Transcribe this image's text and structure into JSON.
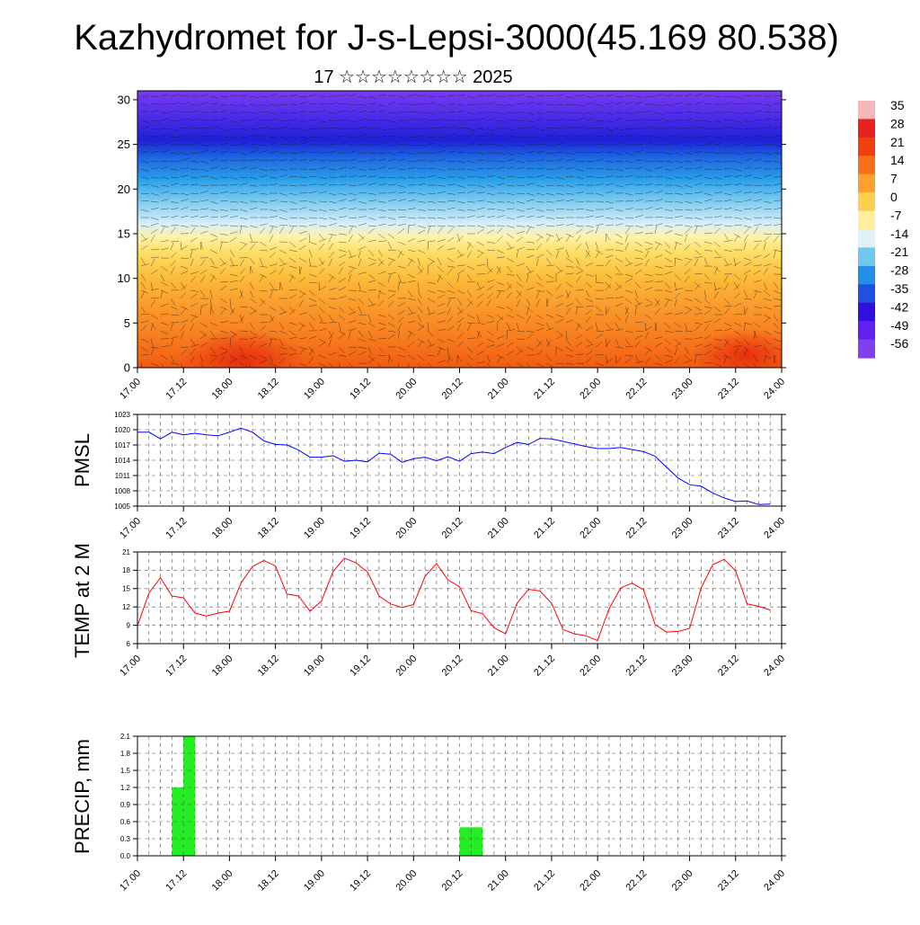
{
  "title": "Kazhydromet for J-s-Lepsi-3000(45.169 80.538)",
  "subtitle": "17 ☆☆☆☆☆☆☆☆ 2025",
  "time_ticks": [
    "17.00",
    "17.12",
    "18.00",
    "18.12",
    "19.00",
    "19.12",
    "20.00",
    "20.12",
    "21.00",
    "21.12",
    "22.00",
    "22.12",
    "23.00",
    "23.12",
    "24.00"
  ],
  "colors": {
    "pmsl_line": "#0000ff",
    "temp_line": "#ff0000",
    "precip_bar": "#22ee22",
    "grid": "#555555"
  },
  "colorbar": {
    "labels": [
      "35",
      "28",
      "21",
      "14",
      "7",
      "0",
      "-7",
      "-14",
      "-21",
      "-28",
      "-35",
      "-42",
      "-49",
      "-56"
    ],
    "stops": [
      "#f4b8b8",
      "#e82020",
      "#f04010",
      "#f87018",
      "#fca030",
      "#fdd050",
      "#fff0a0",
      "#e0f0f8",
      "#70c8f0",
      "#2090e8",
      "#2050e0",
      "#3010e0",
      "#6020f0",
      "#8040f0"
    ]
  },
  "chart_data": [
    {
      "type": "heatmap",
      "name": "cross-section",
      "ylim": [
        0,
        31
      ],
      "yticks": [
        0,
        5,
        10,
        15,
        20,
        25,
        30
      ],
      "xlim": [
        0,
        168
      ]
    },
    {
      "type": "line",
      "ylabel": "PMSL",
      "ylim": [
        1005,
        1023
      ],
      "yticks": [
        1005,
        1008,
        1011,
        1014,
        1017,
        1020,
        1023
      ],
      "x": [
        0,
        3,
        6,
        9,
        12,
        15,
        18,
        21,
        24,
        27,
        30,
        33,
        36,
        39,
        42,
        45,
        48,
        51,
        54,
        57,
        60,
        63,
        66,
        69,
        72,
        75,
        78,
        81,
        84,
        87,
        90,
        93,
        96,
        99,
        102,
        105,
        108,
        111,
        114,
        117,
        120,
        123,
        126,
        129,
        132,
        135,
        138,
        141,
        144,
        147,
        150,
        153,
        156,
        159,
        162,
        165
      ],
      "values": [
        1019.5,
        1019.5,
        1018.2,
        1019.5,
        1019.0,
        1019.3,
        1019.0,
        1018.8,
        1019.5,
        1020.3,
        1019.5,
        1017.8,
        1017.1,
        1017.0,
        1016.0,
        1014.6,
        1014.6,
        1014.9,
        1013.8,
        1014.0,
        1013.7,
        1015.4,
        1015.2,
        1013.6,
        1014.3,
        1014.6,
        1013.9,
        1014.7,
        1013.8,
        1015.3,
        1015.6,
        1015.3,
        1016.5,
        1017.5,
        1017.1,
        1018.3,
        1018.2,
        1017.7,
        1017.2,
        1016.7,
        1016.3,
        1016.3,
        1016.5,
        1016.1,
        1015.7,
        1014.8,
        1012.6,
        1010.5,
        1009.2,
        1008.9,
        1007.6,
        1006.6,
        1005.9,
        1006.0,
        1005.3,
        1005.4
      ]
    },
    {
      "type": "line",
      "ylabel": "TEMP at 2 M",
      "ylim": [
        6,
        21
      ],
      "yticks": [
        6,
        9,
        12,
        15,
        18,
        21
      ],
      "x": [
        0,
        3,
        6,
        9,
        12,
        15,
        18,
        21,
        24,
        27,
        30,
        33,
        36,
        39,
        42,
        45,
        48,
        51,
        54,
        57,
        60,
        63,
        66,
        69,
        72,
        75,
        78,
        81,
        84,
        87,
        90,
        93,
        96,
        99,
        102,
        105,
        108,
        111,
        114,
        117,
        120,
        123,
        126,
        129,
        132,
        135,
        138,
        141,
        144,
        147,
        150,
        153,
        156,
        159,
        162,
        165
      ],
      "values": [
        8.9,
        14.3,
        16.8,
        13.8,
        13.5,
        11.0,
        10.5,
        11.0,
        11.3,
        15.9,
        18.6,
        19.6,
        18.7,
        14.1,
        13.8,
        11.3,
        13.0,
        17.8,
        20.0,
        19.2,
        17.7,
        13.8,
        12.5,
        11.9,
        12.4,
        17.0,
        19.1,
        16.4,
        15.3,
        11.4,
        10.9,
        8.6,
        7.6,
        12.6,
        14.9,
        14.6,
        12.6,
        8.3,
        7.6,
        7.3,
        6.5,
        11.7,
        15.1,
        15.9,
        14.8,
        9.1,
        7.9,
        8.0,
        8.5,
        15.1,
        18.9,
        19.8,
        17.9,
        12.5,
        12.1,
        11.5
      ]
    },
    {
      "type": "bar",
      "ylabel": "PRECIP, mm",
      "ylim": [
        0,
        2.1
      ],
      "yticks": [
        "0.0",
        "0.3",
        "0.6",
        "0.9",
        "1.2",
        "1.5",
        "1.8",
        "2.1"
      ],
      "x_start": [
        9,
        12,
        84
      ],
      "x_end": [
        12,
        15,
        90
      ],
      "values": [
        1.2,
        2.1,
        0.5
      ]
    }
  ]
}
